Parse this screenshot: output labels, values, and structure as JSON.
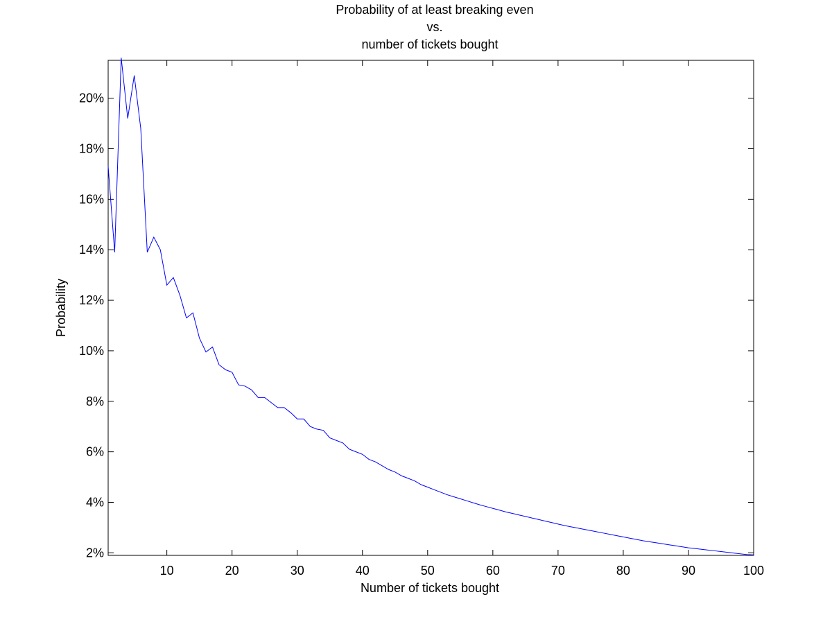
{
  "chart_data": {
    "type": "line",
    "title_lines": [
      "Probability of at least breaking even",
      "vs.",
      "number of tickets bought"
    ],
    "xlabel": "Number of tickets bought",
    "ylabel": "Probability",
    "xlim": [
      1,
      100
    ],
    "ylim": [
      1.9,
      21.5
    ],
    "y_unit": "%",
    "xticks": [
      10,
      20,
      30,
      40,
      50,
      60,
      70,
      80,
      90,
      100
    ],
    "yticks": [
      2,
      4,
      6,
      8,
      10,
      12,
      14,
      16,
      18,
      20
    ],
    "ytick_labels": [
      "2%",
      "4%",
      "6%",
      "8%",
      "10%",
      "12%",
      "14%",
      "16%",
      "18%",
      "20%"
    ],
    "grid": false,
    "box": true,
    "line_color": "#0000ff",
    "series": [
      {
        "x": [
          1,
          2,
          3,
          4,
          5,
          6,
          7,
          8,
          9,
          10,
          11,
          12,
          13,
          14,
          15,
          16,
          17,
          18,
          19,
          20,
          21,
          22,
          23,
          24,
          25,
          26,
          27,
          28,
          29,
          30,
          31,
          32,
          33,
          34,
          35,
          36,
          37,
          38,
          39,
          40,
          41,
          42,
          43,
          44,
          45,
          46,
          47,
          48,
          49,
          50,
          51,
          52,
          53,
          54,
          55,
          56,
          57,
          58,
          59,
          60,
          61,
          62,
          63,
          64,
          65,
          66,
          67,
          68,
          69,
          70,
          71,
          72,
          73,
          74,
          75,
          76,
          77,
          78,
          79,
          80,
          81,
          82,
          83,
          84,
          85,
          86,
          87,
          88,
          89,
          90,
          91,
          92,
          93,
          94,
          95,
          96,
          97,
          98,
          99,
          100
        ],
        "values": [
          17.3,
          13.9,
          21.6,
          19.2,
          20.9,
          18.8,
          13.9,
          14.5,
          14.0,
          12.6,
          12.9,
          12.2,
          11.3,
          11.5,
          10.5,
          9.95,
          10.15,
          9.45,
          9.25,
          9.15,
          8.65,
          8.6,
          8.45,
          8.15,
          8.15,
          7.95,
          7.75,
          7.75,
          7.55,
          7.3,
          7.3,
          7.0,
          6.9,
          6.85,
          6.55,
          6.45,
          6.35,
          6.1,
          6.0,
          5.9,
          5.7,
          5.6,
          5.45,
          5.3,
          5.2,
          5.05,
          4.95,
          4.85,
          4.7,
          4.6,
          4.5,
          4.4,
          4.3,
          4.22,
          4.14,
          4.06,
          3.98,
          3.9,
          3.83,
          3.76,
          3.69,
          3.62,
          3.56,
          3.5,
          3.44,
          3.38,
          3.32,
          3.26,
          3.2,
          3.14,
          3.08,
          3.03,
          2.98,
          2.93,
          2.88,
          2.83,
          2.78,
          2.73,
          2.68,
          2.63,
          2.58,
          2.53,
          2.48,
          2.44,
          2.4,
          2.36,
          2.32,
          2.28,
          2.24,
          2.2,
          2.17,
          2.14,
          2.11,
          2.08,
          2.05,
          2.02,
          1.99,
          1.96,
          1.93,
          1.92
        ]
      }
    ]
  }
}
